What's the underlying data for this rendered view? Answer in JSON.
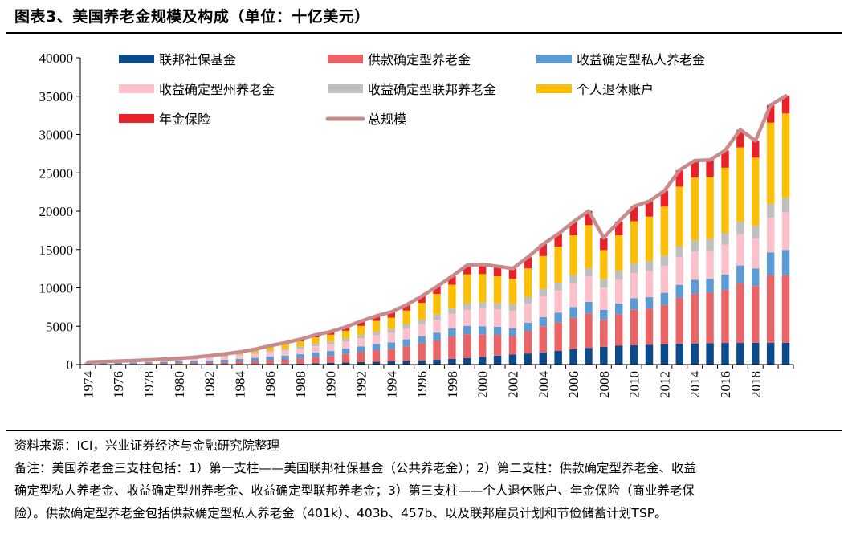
{
  "title": "图表3、美国养老金规模及构成（单位：十亿美元）",
  "source": "资料来源：ICI，兴业证券经济与金融研究院整理",
  "note_lines": [
    "备注：美国养老金三支柱包括：1）第一支柱——美国联邦社保基金（公共养老金）；2）第二支柱：供款确定型养老金、收益",
    "确定型私人养老金、收益确定型州养老金、收益确定型联邦养老金；3）第三支柱——个人退休账户、年金保险（商业养老保",
    "险）。供款确定型养老金包括供款确定型私人养老金（401k）、403b、457b、以及联邦雇员计划和节俭储蓄计划TSP。"
  ],
  "chart_data": {
    "type": "bar",
    "stacked": true,
    "title": "",
    "xlabel": "",
    "ylabel": "",
    "ylim": [
      0,
      40000
    ],
    "yticks": [
      0,
      5000,
      10000,
      15000,
      20000,
      25000,
      30000,
      35000,
      40000
    ],
    "x_tick_labels": [
      "1974",
      "1976",
      "1978",
      "1980",
      "1982",
      "1984",
      "1986",
      "1988",
      "1990",
      "1992",
      "1994",
      "1996",
      "1998",
      "2000",
      "2002",
      "2004",
      "2006",
      "2008",
      "2010",
      "2012",
      "2014",
      "2016",
      "2018"
    ],
    "legend_position": "top",
    "grid": false,
    "categories": [
      "1974",
      "1975",
      "1976",
      "1977",
      "1978",
      "1979",
      "1980",
      "1981",
      "1982",
      "1983",
      "1984",
      "1985",
      "1986",
      "1987",
      "1988",
      "1989",
      "1990",
      "1991",
      "1992",
      "1993",
      "1994",
      "1995",
      "1996",
      "1997",
      "1998",
      "1999",
      "2000",
      "2001",
      "2002",
      "2003",
      "2004",
      "2005",
      "2006",
      "2007",
      "2008",
      "2009",
      "2010",
      "2011",
      "2012",
      "2013",
      "2014",
      "2015",
      "2016",
      "2017",
      "2018",
      "2019",
      "2020"
    ],
    "series": [
      {
        "name": "联邦社保基金",
        "color": "#0b4a8b",
        "kind": "bar",
        "values": [
          40,
          40,
          40,
          40,
          40,
          40,
          40,
          40,
          40,
          40,
          40,
          40,
          60,
          80,
          110,
          160,
          220,
          280,
          330,
          380,
          430,
          490,
          560,
          660,
          760,
          860,
          1000,
          1170,
          1320,
          1450,
          1600,
          1780,
          2000,
          2180,
          2330,
          2460,
          2540,
          2590,
          2660,
          2700,
          2750,
          2780,
          2820,
          2820,
          2840,
          2840,
          2850
        ]
      },
      {
        "name": "供款确定型养老金",
        "color": "#ea6466",
        "kind": "bar",
        "values": [
          30,
          40,
          60,
          80,
          100,
          120,
          150,
          180,
          220,
          270,
          330,
          420,
          520,
          600,
          700,
          820,
          900,
          1100,
          1300,
          1500,
          1600,
          1900,
          2200,
          2500,
          2900,
          3100,
          2900,
          2700,
          2400,
          2900,
          3400,
          3700,
          4100,
          4500,
          3500,
          4100,
          4600,
          4700,
          5100,
          6000,
          6500,
          6600,
          6900,
          7800,
          7400,
          8800,
          8800
        ]
      },
      {
        "name": "收益确定型私人养老金",
        "color": "#5b9bd5",
        "kind": "bar",
        "values": [
          100,
          120,
          130,
          150,
          170,
          200,
          230,
          260,
          290,
          330,
          370,
          420,
          460,
          500,
          540,
          600,
          650,
          700,
          750,
          800,
          850,
          900,
          950,
          1000,
          1050,
          1100,
          1100,
          1050,
          1000,
          1100,
          1200,
          1300,
          1400,
          1500,
          1300,
          1400,
          1500,
          1500,
          1600,
          1700,
          1800,
          1800,
          2000,
          2300,
          2300,
          3000,
          3300
        ]
      },
      {
        "name": "收益确定型州养老金",
        "color": "#fbc0ca",
        "kind": "bar",
        "values": [
          120,
          140,
          160,
          180,
          200,
          230,
          260,
          300,
          340,
          380,
          440,
          520,
          600,
          670,
          740,
          820,
          880,
          950,
          1050,
          1150,
          1250,
          1400,
          1550,
          1700,
          1900,
          2100,
          2300,
          2300,
          2300,
          2500,
          2700,
          2900,
          3100,
          3300,
          2900,
          3100,
          3300,
          3400,
          3500,
          3600,
          3700,
          3700,
          3900,
          4100,
          3900,
          4500,
          4900
        ]
      },
      {
        "name": "收益确定型联邦养老金",
        "color": "#bfbfbf",
        "kind": "bar",
        "values": [
          30,
          30,
          40,
          40,
          50,
          60,
          70,
          80,
          100,
          120,
          140,
          160,
          180,
          200,
          250,
          300,
          350,
          380,
          420,
          460,
          500,
          550,
          600,
          650,
          700,
          800,
          800,
          800,
          850,
          900,
          950,
          1000,
          1050,
          1100,
          1100,
          1200,
          1250,
          1300,
          1350,
          1400,
          1450,
          1500,
          1550,
          1600,
          1650,
          1800,
          1900
        ]
      },
      {
        "name": "个人退休账户",
        "color": "#fbbf08",
        "kind": "bar",
        "values": [
          10,
          20,
          30,
          40,
          50,
          60,
          60,
          80,
          120,
          180,
          240,
          340,
          480,
          600,
          700,
          850,
          900,
          1000,
          1200,
          1400,
          1500,
          1800,
          2200,
          2700,
          3100,
          3800,
          3700,
          3500,
          3300,
          3700,
          4300,
          4700,
          5200,
          5600,
          3800,
          4600,
          5500,
          5800,
          6400,
          7800,
          8200,
          8100,
          8500,
          9700,
          8900,
          10600,
          11000
        ]
      },
      {
        "name": "年金保险",
        "color": "#e8212b",
        "kind": "bar",
        "values": [
          0,
          0,
          0,
          0,
          0,
          0,
          0,
          20,
          40,
          60,
          80,
          100,
          150,
          200,
          260,
          320,
          400,
          500,
          600,
          650,
          700,
          750,
          850,
          950,
          1100,
          1200,
          1250,
          1300,
          1350,
          1450,
          1550,
          1650,
          1750,
          1850,
          1600,
          1800,
          1950,
          2000,
          2050,
          2150,
          2200,
          2200,
          2250,
          2300,
          2200,
          2300,
          2300
        ]
      },
      {
        "name": "总规模",
        "color": "#c78b8b",
        "kind": "line",
        "values": [
          330,
          390,
          460,
          530,
          610,
          710,
          810,
          960,
          1150,
          1390,
          1640,
          2000,
          2450,
          2850,
          3300,
          3870,
          4300,
          4910,
          5650,
          6340,
          6870,
          7790,
          8910,
          10160,
          11510,
          12960,
          13050,
          12820,
          12520,
          14000,
          15700,
          17030,
          18600,
          20030,
          16530,
          18660,
          20640,
          21290,
          22660,
          25350,
          26600,
          26680,
          27920,
          30620,
          29190,
          33840,
          35050
        ]
      }
    ]
  }
}
